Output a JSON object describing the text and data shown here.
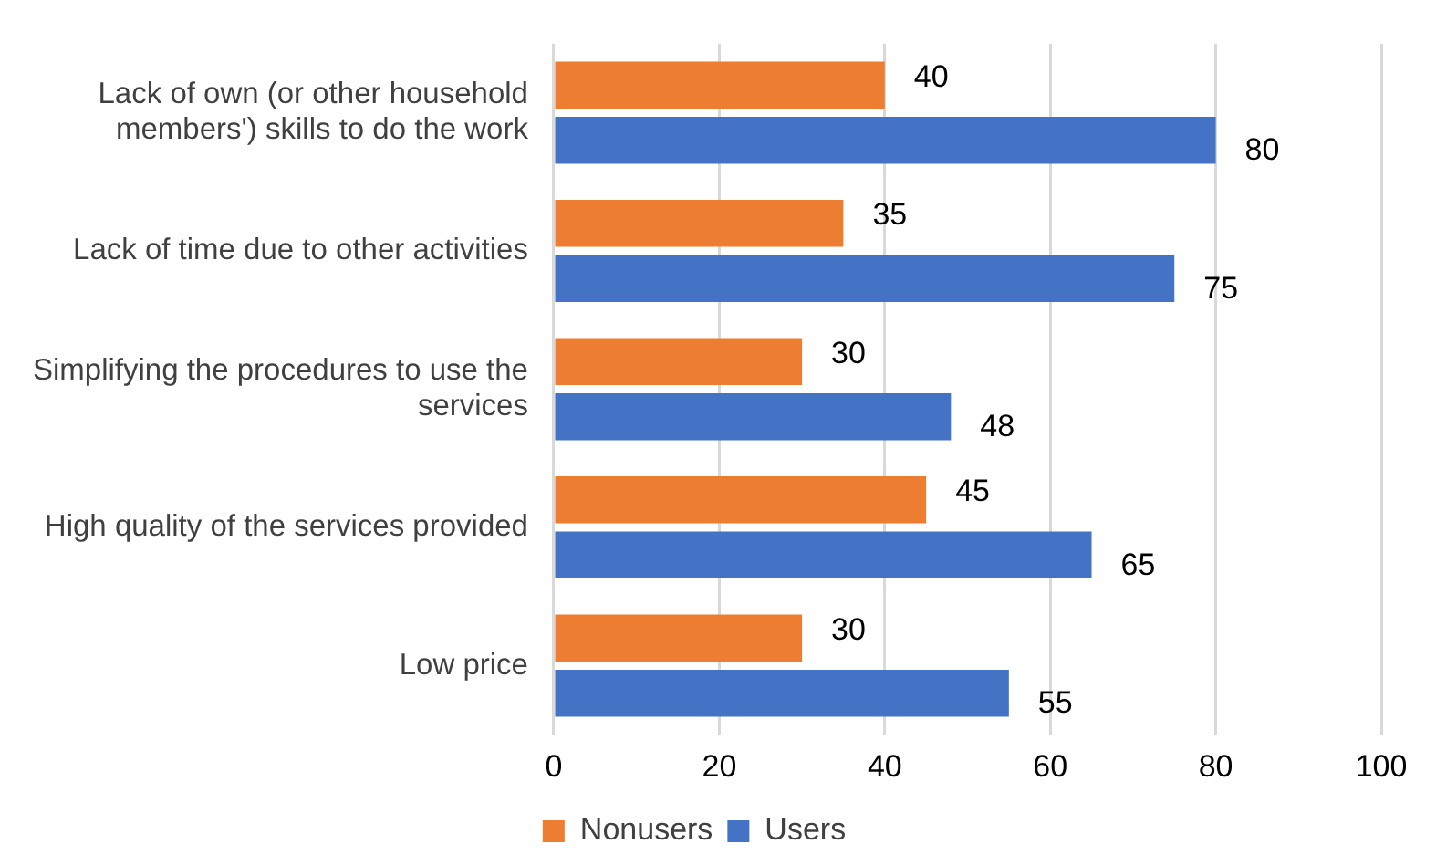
{
  "chart_data": {
    "type": "bar",
    "orientation": "horizontal",
    "categories": [
      "Lack of own (or other household members') skills to do the work",
      "Lack of time due to other activities",
      "Simplifying the procedures to use the services",
      "High quality of the services provided",
      "Low price"
    ],
    "series": [
      {
        "name": "Nonusers",
        "color": "#ed7d31",
        "values": [
          40,
          35,
          30,
          45,
          30
        ]
      },
      {
        "name": "Users",
        "color": "#4472c4",
        "values": [
          80,
          75,
          48,
          65,
          55
        ]
      }
    ],
    "xlim": [
      0,
      100
    ],
    "xticks": [
      0,
      20,
      40,
      60,
      80,
      100
    ],
    "grid": "x",
    "legend": "bottom",
    "data_labels": true
  }
}
